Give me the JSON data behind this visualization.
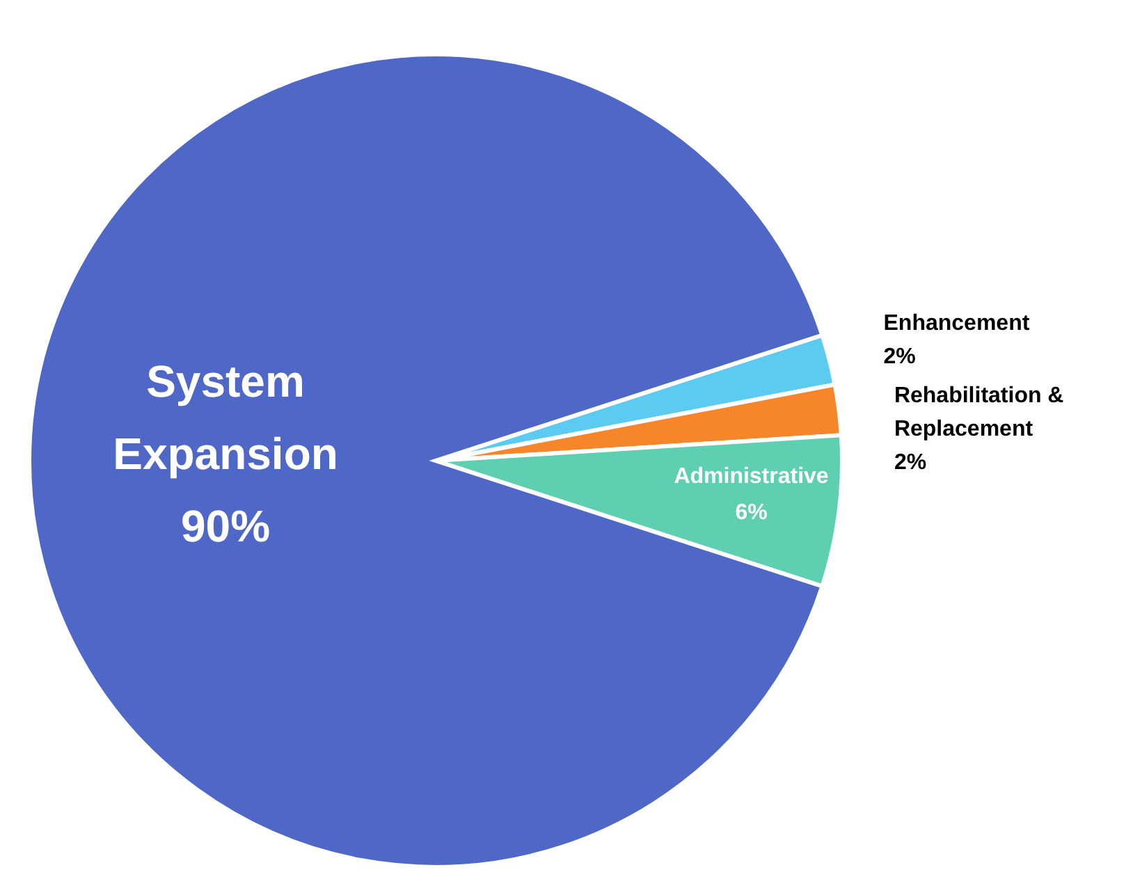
{
  "chart_data": {
    "type": "pie",
    "categories": [
      "Enhancement",
      "Rehabilitation & Replacement",
      "Administrative",
      "System Expansion"
    ],
    "values": [
      2,
      2,
      6,
      90
    ],
    "colors": [
      "#5ccbf2",
      "#f7862a",
      "#5ecfb1",
      "#4f67c6"
    ],
    "value_labels": [
      "2%",
      "2%",
      "6%",
      "90%"
    ],
    "legend": false
  }
}
